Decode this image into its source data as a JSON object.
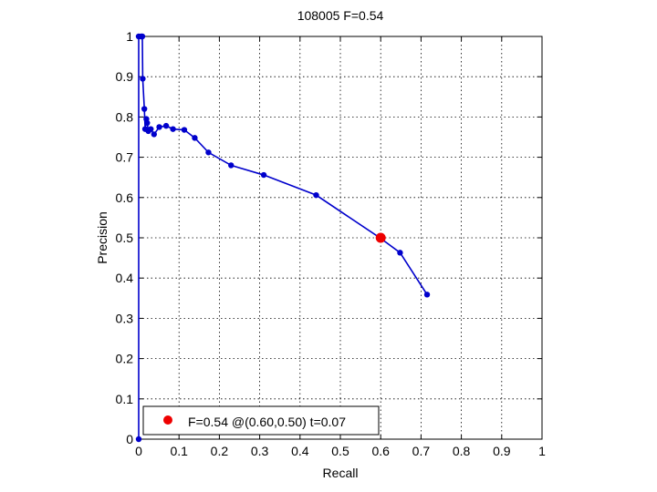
{
  "chart_data": {
    "type": "line",
    "title": "108005 F=0.54",
    "xlabel": "Recall",
    "ylabel": "Precision",
    "xlim": [
      0,
      1
    ],
    "ylim": [
      0,
      1
    ],
    "grid": true,
    "x_ticks": [
      "0",
      "0.1",
      "0.2",
      "0.3",
      "0.4",
      "0.5",
      "0.6",
      "0.7",
      "0.8",
      "0.9",
      "1"
    ],
    "y_ticks": [
      "0",
      "0.1",
      "0.2",
      "0.3",
      "0.4",
      "0.5",
      "0.6",
      "0.7",
      "0.8",
      "0.9",
      "1"
    ],
    "series": [
      {
        "color": "#0000cc",
        "points": [
          [
            0.0,
            0.0
          ],
          [
            0.0,
            1.0
          ],
          [
            0.006,
            1.0
          ],
          [
            0.009,
            1.0
          ],
          [
            0.01,
            0.895
          ],
          [
            0.014,
            0.82
          ],
          [
            0.016,
            0.77
          ],
          [
            0.019,
            0.795
          ],
          [
            0.021,
            0.785
          ],
          [
            0.024,
            0.765
          ],
          [
            0.03,
            0.77
          ],
          [
            0.038,
            0.757
          ],
          [
            0.051,
            0.775
          ],
          [
            0.068,
            0.778
          ],
          [
            0.085,
            0.77
          ],
          [
            0.113,
            0.768
          ],
          [
            0.139,
            0.748
          ],
          [
            0.173,
            0.712
          ],
          [
            0.229,
            0.68
          ],
          [
            0.31,
            0.656
          ],
          [
            0.44,
            0.606
          ],
          [
            0.598,
            0.5
          ],
          [
            0.648,
            0.463
          ],
          [
            0.715,
            0.359
          ]
        ]
      }
    ],
    "highlight": {
      "x": 0.6,
      "y": 0.5,
      "color": "#ee0000"
    },
    "legend": {
      "location": "bottom-left",
      "text": "F=0.54 @(0.60,0.50) t=0.07"
    }
  }
}
